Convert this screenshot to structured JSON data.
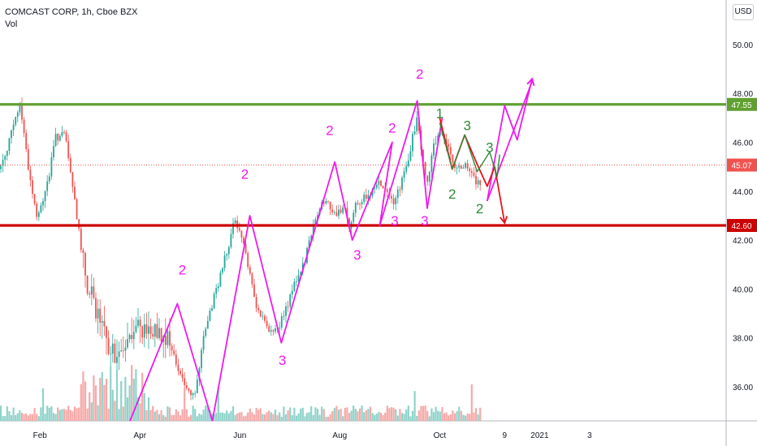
{
  "header": {
    "symbol_line": "COMCAST CORP, 1h, Cboe BZX",
    "volume_label": "Vol"
  },
  "currency_button": "USD",
  "colors": {
    "pattern": "#ee19ee",
    "green_wave": "#2e8b37",
    "red_path": "#e8131b",
    "resistance": "#60a030",
    "support": "#cc0000",
    "current": "#ef5350",
    "candle_up": "#26a69a",
    "candle_down": "#ef5350",
    "vol_up": "#8fd3cb",
    "vol_down": "#f6a9a8"
  },
  "chart_data": {
    "type": "candlestick",
    "x_ticks": [
      {
        "label": "Feb",
        "t": 1
      },
      {
        "label": "Apr",
        "t": 3
      },
      {
        "label": "Jun",
        "t": 5
      },
      {
        "label": "Aug",
        "t": 7
      },
      {
        "label": "Oct",
        "t": 9
      },
      {
        "label": "9",
        "t": 10.3
      },
      {
        "label": "2021",
        "t": 11
      },
      {
        "label": "3",
        "t": 12
      }
    ],
    "y_ticks": [
      36,
      38,
      40,
      42,
      44,
      46,
      48,
      50
    ],
    "ylim": [
      34.6,
      51.1
    ],
    "xlim": [
      0.2,
      15.35
    ],
    "horizontal_lines": [
      {
        "name": "resistance",
        "value": 47.55,
        "label": "47.55",
        "color": "#60a030"
      },
      {
        "name": "support",
        "value": 42.6,
        "label": "42.60",
        "color": "#cc0000"
      }
    ],
    "current_price": {
      "value": 45.07,
      "label": "45.07",
      "color": "#ef5350"
    },
    "price_path": [
      [
        0.2,
        44.9
      ],
      [
        0.45,
        46.5
      ],
      [
        0.6,
        47.6
      ],
      [
        0.8,
        44.5
      ],
      [
        0.95,
        42.8
      ],
      [
        1.2,
        44.8
      ],
      [
        1.3,
        46.2
      ],
      [
        1.5,
        46.3
      ],
      [
        1.7,
        43.5
      ],
      [
        1.95,
        40.2
      ],
      [
        2.3,
        38.0
      ],
      [
        2.6,
        37.0
      ],
      [
        2.9,
        38.2
      ],
      [
        3.1,
        38.5
      ],
      [
        3.3,
        38.4
      ],
      [
        3.55,
        38.0
      ],
      [
        3.8,
        36.4
      ],
      [
        4.1,
        35.6
      ],
      [
        4.3,
        38.3
      ],
      [
        4.6,
        40.5
      ],
      [
        4.9,
        42.8
      ],
      [
        5.1,
        41.7
      ],
      [
        5.3,
        39.5
      ],
      [
        5.5,
        38.6
      ],
      [
        5.7,
        38.2
      ],
      [
        5.9,
        39.0
      ],
      [
        6.1,
        40.3
      ],
      [
        6.3,
        41.2
      ],
      [
        6.5,
        42.7
      ],
      [
        6.7,
        43.7
      ],
      [
        6.9,
        43.1
      ],
      [
        7.1,
        43.3
      ],
      [
        7.2,
        42.4
      ],
      [
        7.3,
        43.4
      ],
      [
        7.55,
        43.8
      ],
      [
        7.8,
        44.4
      ],
      [
        7.95,
        44.1
      ],
      [
        8.1,
        43.5
      ],
      [
        8.35,
        45.2
      ],
      [
        8.55,
        47.0
      ],
      [
        8.65,
        45.5
      ],
      [
        8.75,
        44.2
      ],
      [
        8.85,
        45.6
      ],
      [
        9.0,
        46.6
      ],
      [
        9.1,
        46.2
      ],
      [
        9.3,
        45.0
      ],
      [
        9.5,
        45.1
      ],
      [
        9.7,
        44.5
      ],
      [
        9.85,
        44.0
      ]
    ],
    "annotations": {
      "magenta_path_1": [
        [
          2.8,
          34.6
        ],
        [
          3.75,
          39.4
        ],
        [
          4.45,
          34.6
        ]
      ],
      "magenta_path_2": [
        [
          4.45,
          34.6
        ],
        [
          5.2,
          43.0
        ],
        [
          5.83,
          37.8
        ],
        [
          6.9,
          45.2
        ],
        [
          7.25,
          42.0
        ],
        [
          8.05,
          46.0
        ],
        [
          7.8,
          42.6
        ],
        [
          8.55,
          47.7
        ],
        [
          8.75,
          43.3
        ],
        [
          9.05,
          47.0
        ]
      ],
      "magenta_path_3": [
        [
          9.95,
          43.6
        ],
        [
          10.3,
          47.5
        ],
        [
          10.55,
          46.1
        ],
        [
          10.85,
          48.6
        ]
      ],
      "magenta_path_4": [
        [
          9.95,
          43.6
        ],
        [
          10.85,
          48.5
        ]
      ],
      "green_path": [
        [
          9.0,
          46.8
        ],
        [
          9.25,
          44.9
        ],
        [
          9.5,
          46.3
        ],
        [
          9.75,
          44.8
        ],
        [
          10.0,
          45.6
        ],
        [
          10.15,
          44.6
        ],
        [
          10.2,
          45.5
        ]
      ],
      "red_path": [
        [
          9.0,
          47.0
        ],
        [
          9.25,
          44.9
        ],
        [
          9.5,
          46.3
        ],
        [
          9.75,
          45.1
        ],
        [
          9.95,
          44.2
        ],
        [
          10.1,
          45.0
        ],
        [
          10.3,
          42.7
        ]
      ],
      "labels": [
        {
          "text": "2",
          "t": 3.85,
          "v": 40.6,
          "color": "magenta"
        },
        {
          "text": "2",
          "t": 5.1,
          "v": 44.5,
          "color": "magenta"
        },
        {
          "text": "3",
          "t": 5.85,
          "v": 36.9,
          "color": "magenta"
        },
        {
          "text": "2",
          "t": 6.8,
          "v": 46.3,
          "color": "magenta"
        },
        {
          "text": "3",
          "t": 7.35,
          "v": 41.2,
          "color": "magenta"
        },
        {
          "text": "2",
          "t": 8.05,
          "v": 46.4,
          "color": "magenta"
        },
        {
          "text": "3",
          "t": 8.1,
          "v": 42.6,
          "color": "magenta"
        },
        {
          "text": "2",
          "t": 8.6,
          "v": 48.6,
          "color": "magenta"
        },
        {
          "text": "3",
          "t": 8.7,
          "v": 42.6,
          "color": "magenta"
        },
        {
          "text": "1",
          "t": 9.0,
          "v": 47.0,
          "color": "green"
        },
        {
          "text": "3",
          "t": 9.55,
          "v": 46.5,
          "color": "green"
        },
        {
          "text": "2",
          "t": 9.25,
          "v": 43.7,
          "color": "green"
        },
        {
          "text": "2",
          "t": 9.8,
          "v": 43.1,
          "color": "green"
        },
        {
          "text": "3",
          "t": 10.0,
          "v": 45.6,
          "color": "green"
        }
      ]
    }
  }
}
